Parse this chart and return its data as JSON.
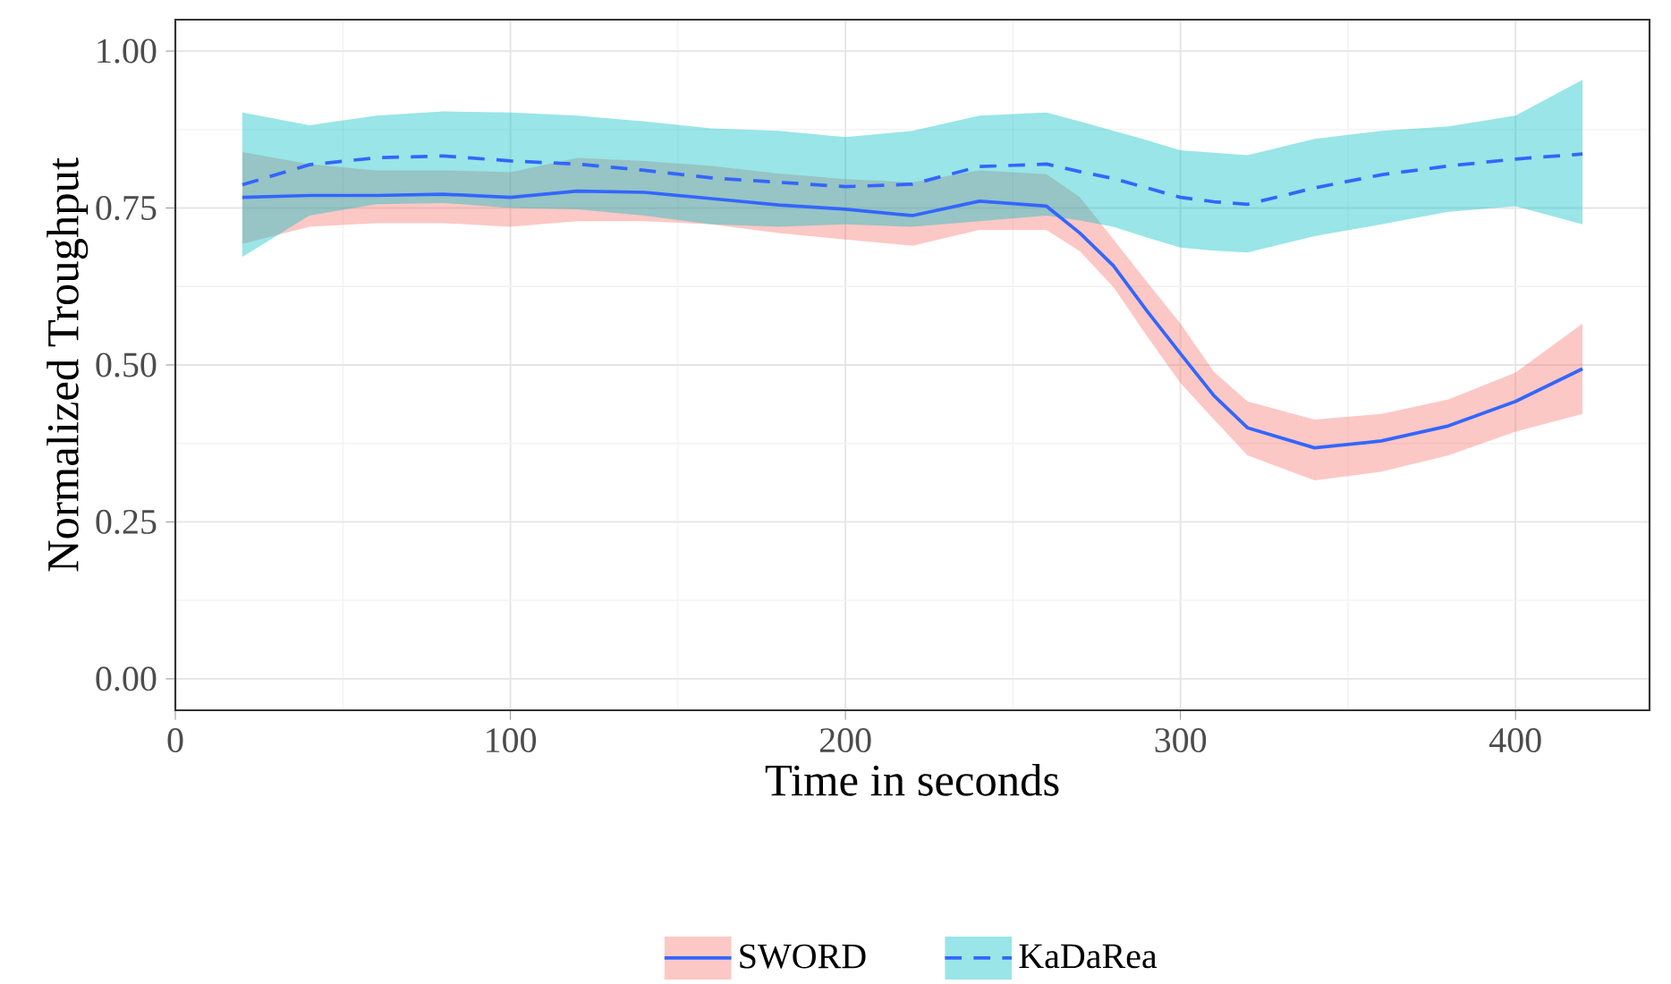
{
  "chart_data": {
    "type": "line",
    "xlabel": "Time in seconds",
    "ylabel": "Normalized Troughput",
    "x": [
      20,
      40,
      60,
      80,
      100,
      120,
      140,
      160,
      180,
      200,
      220,
      240,
      260,
      270,
      280,
      290,
      300,
      310,
      320,
      340,
      360,
      380,
      400,
      420
    ],
    "series": [
      {
        "name": "SWORD",
        "color": "#3366ff",
        "line_style": "solid",
        "values": [
          0.767,
          0.77,
          0.77,
          0.772,
          0.767,
          0.777,
          0.775,
          0.765,
          0.755,
          0.748,
          0.738,
          0.761,
          0.753,
          0.71,
          0.658,
          0.586,
          0.518,
          0.451,
          0.4,
          0.368,
          0.379,
          0.403,
          0.442,
          0.494
        ],
        "lower": [
          0.693,
          0.72,
          0.726,
          0.726,
          0.72,
          0.729,
          0.729,
          0.724,
          0.71,
          0.7,
          0.69,
          0.715,
          0.715,
          0.681,
          0.624,
          0.546,
          0.471,
          0.413,
          0.356,
          0.316,
          0.33,
          0.356,
          0.394,
          0.422
        ],
        "upper": [
          0.839,
          0.82,
          0.81,
          0.81,
          0.807,
          0.83,
          0.825,
          0.817,
          0.805,
          0.796,
          0.791,
          0.81,
          0.804,
          0.767,
          0.7,
          0.632,
          0.566,
          0.489,
          0.442,
          0.413,
          0.422,
          0.445,
          0.488,
          0.566
        ]
      },
      {
        "name": "KaDaRea",
        "color": "#3366ff",
        "line_style": "dashed",
        "values": [
          0.787,
          0.819,
          0.83,
          0.833,
          0.825,
          0.82,
          0.81,
          0.798,
          0.791,
          0.784,
          0.788,
          0.816,
          0.82,
          0.808,
          0.797,
          0.782,
          0.767,
          0.76,
          0.756,
          0.782,
          0.803,
          0.817,
          0.828,
          0.836
        ],
        "lower": [
          0.672,
          0.738,
          0.756,
          0.758,
          0.75,
          0.748,
          0.738,
          0.724,
          0.72,
          0.724,
          0.72,
          0.729,
          0.738,
          0.73,
          0.72,
          0.703,
          0.687,
          0.682,
          0.679,
          0.705,
          0.724,
          0.744,
          0.753,
          0.724
        ],
        "upper": [
          0.902,
          0.882,
          0.897,
          0.904,
          0.902,
          0.897,
          0.888,
          0.877,
          0.873,
          0.863,
          0.873,
          0.897,
          0.902,
          0.888,
          0.873,
          0.858,
          0.842,
          0.838,
          0.834,
          0.86,
          0.873,
          0.88,
          0.897,
          0.954
        ]
      }
    ],
    "xlim": [
      0,
      440
    ],
    "ylim": [
      -0.05,
      1.05
    ],
    "xticks": [
      0,
      100,
      200,
      300,
      400
    ],
    "yticks": [
      {
        "value": 0,
        "label": "0.00"
      },
      {
        "value": 0.25,
        "label": "0.25"
      },
      {
        "value": 0.5,
        "label": "0.50"
      },
      {
        "value": 0.75,
        "label": "0.75"
      },
      {
        "value": 1,
        "label": "1.00"
      }
    ],
    "grid": true,
    "legend": "bottom",
    "marker": "none"
  }
}
